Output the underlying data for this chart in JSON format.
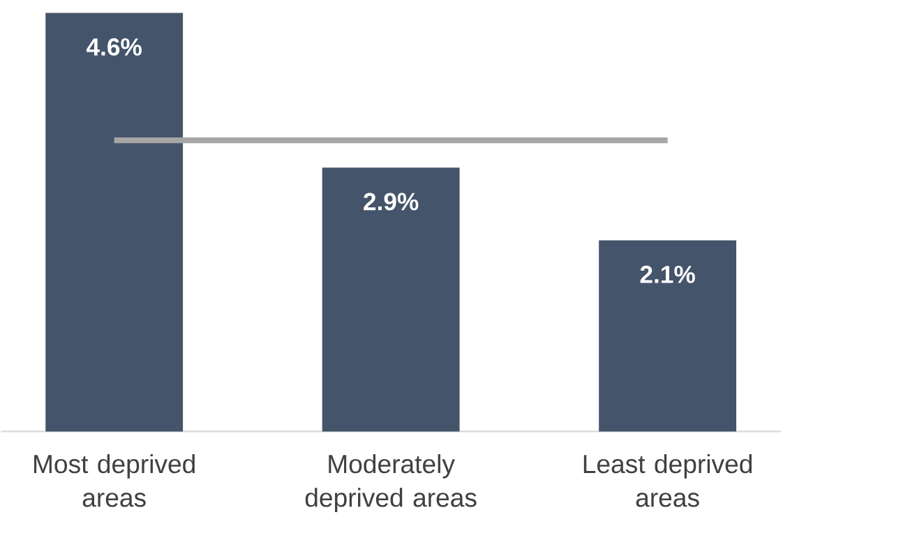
{
  "chart_data": {
    "type": "bar",
    "categories": [
      "Most deprived areas",
      "Moderately deprived areas",
      "Least deprived areas"
    ],
    "values": [
      4.6,
      2.9,
      2.1
    ],
    "value_labels": [
      "4.6%",
      "2.9%",
      "2.1%"
    ],
    "color": "#44546a",
    "tick_labels": "x",
    "ref_lines": [
      {
        "axis": "y",
        "value": 3.2,
        "color": "#a6a6a6"
      }
    ]
  }
}
